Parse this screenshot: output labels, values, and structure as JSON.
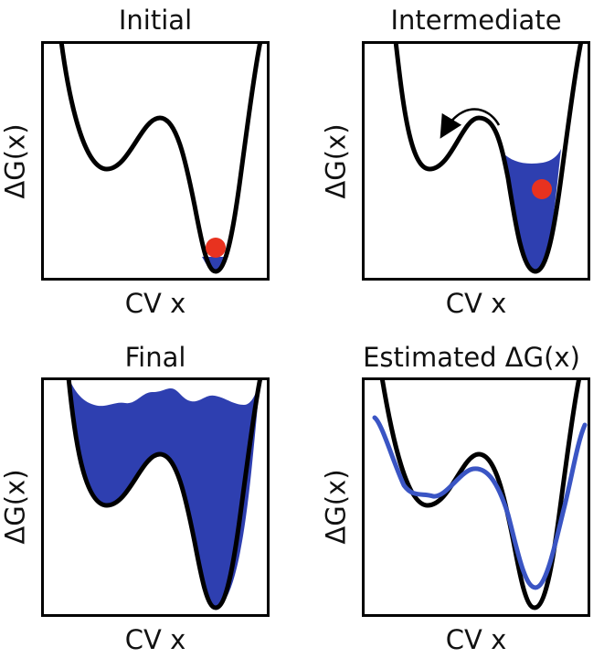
{
  "panels": [
    {
      "title": "Initial",
      "xlabel": "CV x",
      "ylabel": "ΔG(x)"
    },
    {
      "title": "Intermediate",
      "xlabel": "CV x",
      "ylabel": "ΔG(x)"
    },
    {
      "title": "Final",
      "xlabel": "CV x",
      "ylabel": "ΔG(x)"
    },
    {
      "title": "Estimated ΔG(x)",
      "xlabel": "CV x",
      "ylabel": "ΔG(x)"
    }
  ],
  "colors": {
    "curve": "#000000",
    "fill": "#2e3fb0",
    "estimate": "#3a55c4",
    "particle": "#e8321f",
    "frame": "#000000"
  }
}
